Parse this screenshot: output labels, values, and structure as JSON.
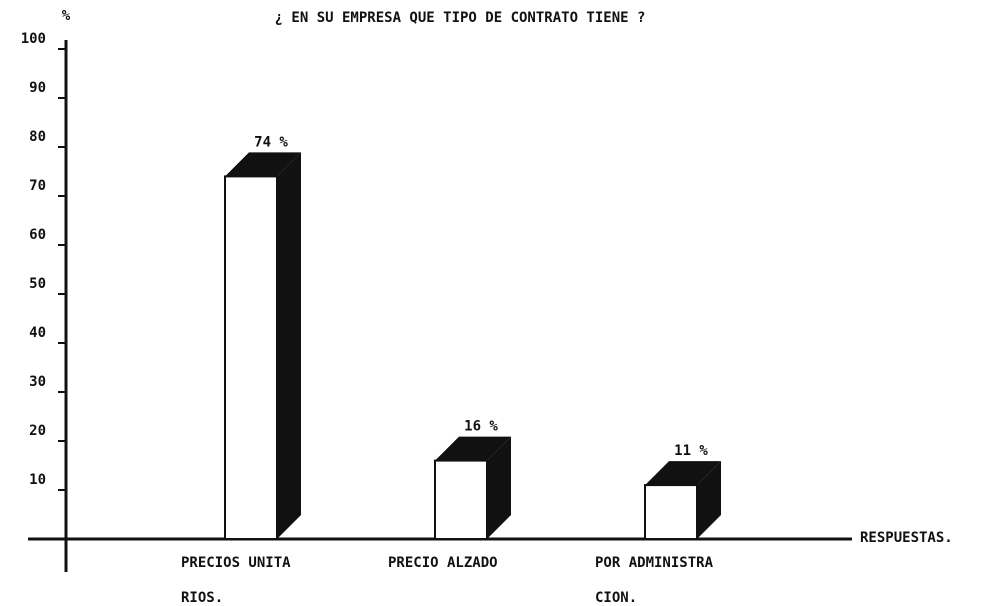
{
  "chart_data": {
    "type": "bar3d",
    "title": "¿ EN SU EMPRESA QUE TIPO DE CONTRATO TIENE ?",
    "y_label": "%",
    "x_label": "RESPUESTAS.",
    "categories": [
      [
        "PRECIOS UNITA",
        "RIOS."
      ],
      [
        "PRECIO ALZADO"
      ],
      [
        "POR ADMINISTRA",
        "CION."
      ]
    ],
    "values": [
      74,
      16,
      11
    ],
    "value_labels": [
      "74 %",
      "16 %",
      "11 %"
    ],
    "color": "#ffffff",
    "ylim": [
      0,
      100
    ],
    "yticks": [
      10,
      20,
      30,
      40,
      50,
      60,
      70,
      80,
      90,
      100
    ]
  }
}
